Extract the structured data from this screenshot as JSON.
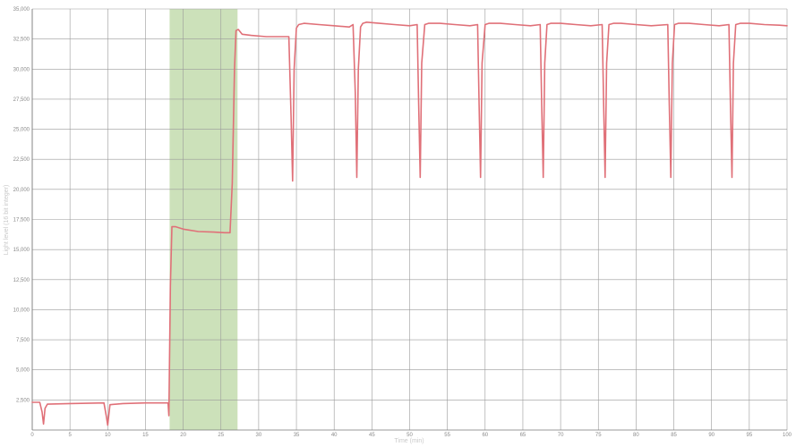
{
  "chart_data": {
    "type": "line",
    "xlabel": "Time (min)",
    "ylabel": "Light level (16 bit integer)",
    "xlim": [
      0,
      100
    ],
    "ylim": [
      0,
      35000
    ],
    "x_ticks": [
      0,
      5,
      10,
      15,
      20,
      25,
      30,
      35,
      40,
      45,
      50,
      55,
      60,
      65,
      70,
      75,
      80,
      85,
      90,
      95,
      100
    ],
    "x_tick_labels": [
      "0",
      "5",
      "10",
      "15",
      "20",
      "25",
      "30",
      "35",
      "40",
      "45",
      "50",
      "55",
      "60",
      "65",
      "70",
      "75",
      "80",
      "85",
      "90",
      "95",
      "100"
    ],
    "y_ticks": [
      2500,
      5000,
      7500,
      10000,
      12500,
      15000,
      17500,
      20000,
      22500,
      25000,
      27500,
      30000,
      32500,
      35000
    ],
    "y_tick_labels": [
      "2,500",
      "5,000",
      "7,500",
      "10,000",
      "12,500",
      "15,000",
      "17,500",
      "20,000",
      "22,500",
      "25,000",
      "27,500",
      "30,000",
      "32,500",
      "35,000"
    ],
    "grid": true,
    "highlight_band": {
      "x_start": 18.2,
      "x_end": 27.2,
      "color": "#c9dfb6"
    },
    "series": [
      {
        "color": "#e07078",
        "x": [
          0,
          1.0,
          1.3,
          1.5,
          1.7,
          2.0,
          5,
          9.5,
          9.8,
          10.0,
          10.3,
          12,
          15,
          18.0,
          18.1,
          18.3,
          18.5,
          19,
          20,
          22,
          24,
          25.5,
          26.2,
          26.5,
          26.8,
          27.0,
          27.3,
          27.8,
          29,
          31,
          34.0,
          34.3,
          34.5,
          34.7,
          35.0,
          35.3,
          36,
          38,
          40,
          42,
          42.5,
          42.8,
          43.0,
          43.2,
          43.5,
          43.8,
          44.3,
          46,
          48,
          50,
          51.0,
          51.2,
          51.4,
          51.6,
          52.0,
          52.5,
          54,
          56,
          58,
          59.0,
          59.2,
          59.4,
          59.6,
          60.0,
          60.5,
          62,
          64,
          66,
          67.3,
          67.5,
          67.7,
          67.9,
          68.2,
          68.7,
          70,
          72,
          74,
          75.5,
          75.7,
          75.9,
          76.1,
          76.4,
          77.0,
          78,
          80,
          82,
          84.2,
          84.4,
          84.6,
          84.8,
          85.1,
          85.6,
          87,
          89,
          91,
          92.3,
          92.5,
          92.7,
          92.9,
          93.2,
          93.8,
          95,
          97,
          99,
          100
        ],
        "y": [
          2300,
          2300,
          1500,
          500,
          1800,
          2150,
          2200,
          2250,
          1200,
          400,
          2100,
          2200,
          2250,
          2250,
          1200,
          12000,
          16900,
          16900,
          16700,
          16500,
          16450,
          16400,
          16400,
          20500,
          30000,
          33200,
          33300,
          32900,
          32800,
          32700,
          32700,
          26000,
          20700,
          30000,
          33400,
          33700,
          33800,
          33700,
          33600,
          33500,
          33700,
          28000,
          21000,
          30000,
          33500,
          33800,
          33900,
          33800,
          33700,
          33600,
          33700,
          27000,
          21000,
          30500,
          33700,
          33800,
          33800,
          33700,
          33600,
          33700,
          27000,
          21000,
          30500,
          33700,
          33800,
          33800,
          33700,
          33600,
          33700,
          27000,
          21000,
          30500,
          33700,
          33800,
          33800,
          33700,
          33600,
          33700,
          27000,
          21000,
          30500,
          33700,
          33800,
          33800,
          33700,
          33600,
          33700,
          27000,
          21000,
          30500,
          33700,
          33800,
          33800,
          33700,
          33600,
          33700,
          27000,
          21000,
          30500,
          33700,
          33800,
          33800,
          33700,
          33650,
          33600
        ]
      }
    ]
  }
}
